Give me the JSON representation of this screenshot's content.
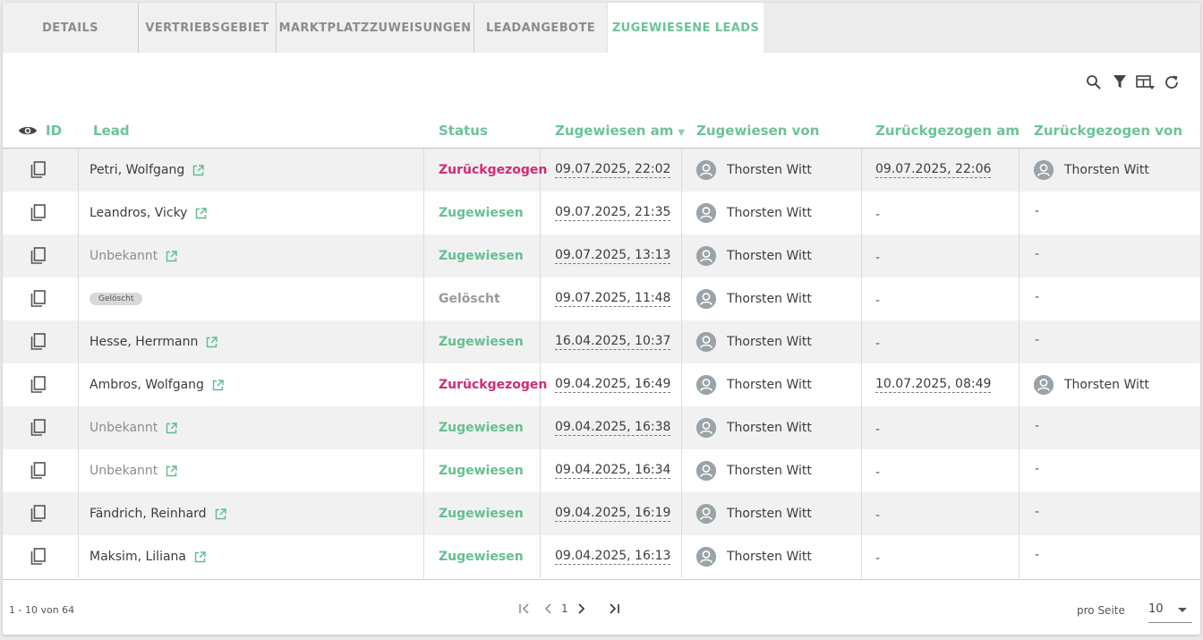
{
  "tabs": [
    "DETAILS",
    "VERTRIEBSGEBIET",
    "MARKTPLATZZUWEISUNGEN",
    "LEADANGEBOTE",
    "ZUGEWIESENE LEADS"
  ],
  "active_tab": "ZUGEWIESENE LEADS",
  "toolbar": {
    "icons": [
      "search-icon",
      "filter-icon",
      "columns-icon",
      "refresh-icon"
    ]
  },
  "table": {
    "columns": {
      "id": "ID",
      "lead": "Lead",
      "status": "Status",
      "assigned_at": "Zugewiesen am",
      "assigned_by": "Zugewiesen von",
      "withdrawn_at": "Zurückgezogen am",
      "withdrawn_by": "Zurückgezogen von"
    },
    "sort": {
      "column": "Zugewiesen am",
      "direction": "desc"
    },
    "rows": [
      {
        "lead": "Petri, Wolfgang",
        "lead_type": "link",
        "status": "Zurückgezogen",
        "assigned_at": "09.07.2025, 22:02",
        "assigned_by": "Thorsten Witt",
        "withdrawn_at": "09.07.2025, 22:06",
        "withdrawn_by": "Thorsten Witt"
      },
      {
        "lead": "Leandros, Vicky",
        "lead_type": "link",
        "status": "Zugewiesen",
        "assigned_at": "09.07.2025, 21:35",
        "assigned_by": "Thorsten Witt",
        "withdrawn_at": "-",
        "withdrawn_by": "-"
      },
      {
        "lead": "Unbekannt",
        "lead_type": "unknown",
        "status": "Zugewiesen",
        "assigned_at": "09.07.2025, 13:13",
        "assigned_by": "Thorsten Witt",
        "withdrawn_at": "-",
        "withdrawn_by": "-"
      },
      {
        "lead": "Gelöscht",
        "lead_type": "deleted",
        "status": "Gelöscht",
        "assigned_at": "09.07.2025, 11:48",
        "assigned_by": "Thorsten Witt",
        "withdrawn_at": "-",
        "withdrawn_by": "-"
      },
      {
        "lead": "Hesse, Herrmann",
        "lead_type": "link",
        "status": "Zugewiesen",
        "assigned_at": "16.04.2025, 10:37",
        "assigned_by": "Thorsten Witt",
        "withdrawn_at": "-",
        "withdrawn_by": "-"
      },
      {
        "lead": "Ambros, Wolfgang",
        "lead_type": "link",
        "status": "Zurückgezogen",
        "assigned_at": "09.04.2025, 16:49",
        "assigned_by": "Thorsten Witt",
        "withdrawn_at": "10.07.2025, 08:49",
        "withdrawn_by": "Thorsten Witt"
      },
      {
        "lead": "Unbekannt",
        "lead_type": "unknown",
        "status": "Zugewiesen",
        "assigned_at": "09.04.2025, 16:38",
        "assigned_by": "Thorsten Witt",
        "withdrawn_at": "-",
        "withdrawn_by": "-"
      },
      {
        "lead": "Unbekannt",
        "lead_type": "unknown",
        "status": "Zugewiesen",
        "assigned_at": "09.04.2025, 16:34",
        "assigned_by": "Thorsten Witt",
        "withdrawn_at": "-",
        "withdrawn_by": "-"
      },
      {
        "lead": "Fändrich, Reinhard",
        "lead_type": "link",
        "status": "Zugewiesen",
        "assigned_at": "09.04.2025, 16:19",
        "assigned_by": "Thorsten Witt",
        "withdrawn_at": "-",
        "withdrawn_by": "-"
      },
      {
        "lead": "Maksim, Liliana",
        "lead_type": "link",
        "status": "Zugewiesen",
        "assigned_at": "09.04.2025, 16:13",
        "assigned_by": "Thorsten Witt",
        "withdrawn_at": "-",
        "withdrawn_by": "-"
      }
    ]
  },
  "footer": {
    "range": "1 - 10 von 64",
    "page": "1",
    "per_page_label": "pro Seite",
    "per_page": "10"
  },
  "colors": {
    "accent": "#6cc39a",
    "status_assigned": "#66bf93",
    "status_withdrawn": "#d02b78",
    "status_deleted": "#9a9a9a"
  }
}
